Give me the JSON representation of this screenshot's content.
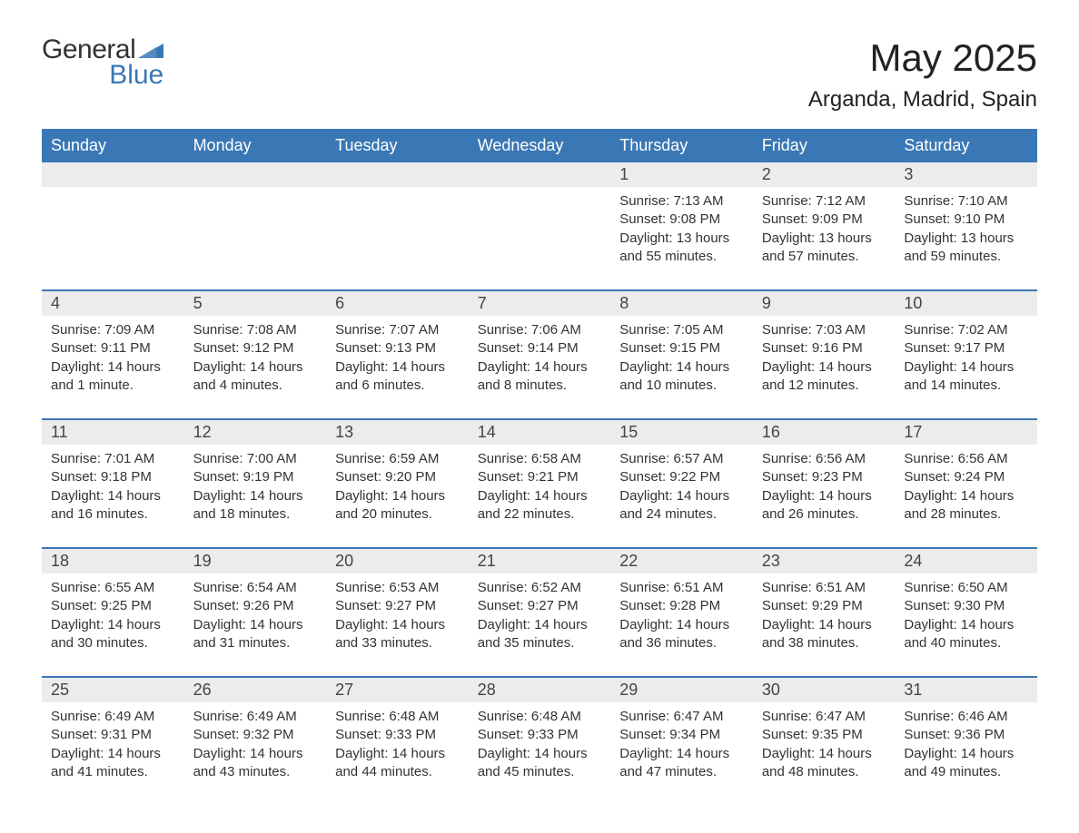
{
  "logo": {
    "text1": "General",
    "text2": "Blue",
    "triangle_color": "#3a78b5"
  },
  "title": "May 2025",
  "location": "Arganda, Madrid, Spain",
  "colors": {
    "header_bg": "#3a78b5",
    "header_text": "#ffffff",
    "daynum_bg": "#ececec",
    "row_border": "#3a78b5",
    "body_text": "#333333",
    "page_bg": "#ffffff"
  },
  "typography": {
    "title_fontsize": 42,
    "location_fontsize": 24,
    "weekday_fontsize": 18,
    "daynum_fontsize": 18,
    "cell_fontsize": 15,
    "font_family": "Arial"
  },
  "calendar": {
    "type": "table",
    "columns": [
      "Sunday",
      "Monday",
      "Tuesday",
      "Wednesday",
      "Thursday",
      "Friday",
      "Saturday"
    ],
    "weeks": [
      [
        null,
        null,
        null,
        null,
        {
          "day": "1",
          "sunrise": "7:13 AM",
          "sunset": "9:08 PM",
          "daylight": "13 hours and 55 minutes."
        },
        {
          "day": "2",
          "sunrise": "7:12 AM",
          "sunset": "9:09 PM",
          "daylight": "13 hours and 57 minutes."
        },
        {
          "day": "3",
          "sunrise": "7:10 AM",
          "sunset": "9:10 PM",
          "daylight": "13 hours and 59 minutes."
        }
      ],
      [
        {
          "day": "4",
          "sunrise": "7:09 AM",
          "sunset": "9:11 PM",
          "daylight": "14 hours and 1 minute."
        },
        {
          "day": "5",
          "sunrise": "7:08 AM",
          "sunset": "9:12 PM",
          "daylight": "14 hours and 4 minutes."
        },
        {
          "day": "6",
          "sunrise": "7:07 AM",
          "sunset": "9:13 PM",
          "daylight": "14 hours and 6 minutes."
        },
        {
          "day": "7",
          "sunrise": "7:06 AM",
          "sunset": "9:14 PM",
          "daylight": "14 hours and 8 minutes."
        },
        {
          "day": "8",
          "sunrise": "7:05 AM",
          "sunset": "9:15 PM",
          "daylight": "14 hours and 10 minutes."
        },
        {
          "day": "9",
          "sunrise": "7:03 AM",
          "sunset": "9:16 PM",
          "daylight": "14 hours and 12 minutes."
        },
        {
          "day": "10",
          "sunrise": "7:02 AM",
          "sunset": "9:17 PM",
          "daylight": "14 hours and 14 minutes."
        }
      ],
      [
        {
          "day": "11",
          "sunrise": "7:01 AM",
          "sunset": "9:18 PM",
          "daylight": "14 hours and 16 minutes."
        },
        {
          "day": "12",
          "sunrise": "7:00 AM",
          "sunset": "9:19 PM",
          "daylight": "14 hours and 18 minutes."
        },
        {
          "day": "13",
          "sunrise": "6:59 AM",
          "sunset": "9:20 PM",
          "daylight": "14 hours and 20 minutes."
        },
        {
          "day": "14",
          "sunrise": "6:58 AM",
          "sunset": "9:21 PM",
          "daylight": "14 hours and 22 minutes."
        },
        {
          "day": "15",
          "sunrise": "6:57 AM",
          "sunset": "9:22 PM",
          "daylight": "14 hours and 24 minutes."
        },
        {
          "day": "16",
          "sunrise": "6:56 AM",
          "sunset": "9:23 PM",
          "daylight": "14 hours and 26 minutes."
        },
        {
          "day": "17",
          "sunrise": "6:56 AM",
          "sunset": "9:24 PM",
          "daylight": "14 hours and 28 minutes."
        }
      ],
      [
        {
          "day": "18",
          "sunrise": "6:55 AM",
          "sunset": "9:25 PM",
          "daylight": "14 hours and 30 minutes."
        },
        {
          "day": "19",
          "sunrise": "6:54 AM",
          "sunset": "9:26 PM",
          "daylight": "14 hours and 31 minutes."
        },
        {
          "day": "20",
          "sunrise": "6:53 AM",
          "sunset": "9:27 PM",
          "daylight": "14 hours and 33 minutes."
        },
        {
          "day": "21",
          "sunrise": "6:52 AM",
          "sunset": "9:27 PM",
          "daylight": "14 hours and 35 minutes."
        },
        {
          "day": "22",
          "sunrise": "6:51 AM",
          "sunset": "9:28 PM",
          "daylight": "14 hours and 36 minutes."
        },
        {
          "day": "23",
          "sunrise": "6:51 AM",
          "sunset": "9:29 PM",
          "daylight": "14 hours and 38 minutes."
        },
        {
          "day": "24",
          "sunrise": "6:50 AM",
          "sunset": "9:30 PM",
          "daylight": "14 hours and 40 minutes."
        }
      ],
      [
        {
          "day": "25",
          "sunrise": "6:49 AM",
          "sunset": "9:31 PM",
          "daylight": "14 hours and 41 minutes."
        },
        {
          "day": "26",
          "sunrise": "6:49 AM",
          "sunset": "9:32 PM",
          "daylight": "14 hours and 43 minutes."
        },
        {
          "day": "27",
          "sunrise": "6:48 AM",
          "sunset": "9:33 PM",
          "daylight": "14 hours and 44 minutes."
        },
        {
          "day": "28",
          "sunrise": "6:48 AM",
          "sunset": "9:33 PM",
          "daylight": "14 hours and 45 minutes."
        },
        {
          "day": "29",
          "sunrise": "6:47 AM",
          "sunset": "9:34 PM",
          "daylight": "14 hours and 47 minutes."
        },
        {
          "day": "30",
          "sunrise": "6:47 AM",
          "sunset": "9:35 PM",
          "daylight": "14 hours and 48 minutes."
        },
        {
          "day": "31",
          "sunrise": "6:46 AM",
          "sunset": "9:36 PM",
          "daylight": "14 hours and 49 minutes."
        }
      ]
    ],
    "labels": {
      "sunrise": "Sunrise:",
      "sunset": "Sunset:",
      "daylight": "Daylight:"
    }
  }
}
